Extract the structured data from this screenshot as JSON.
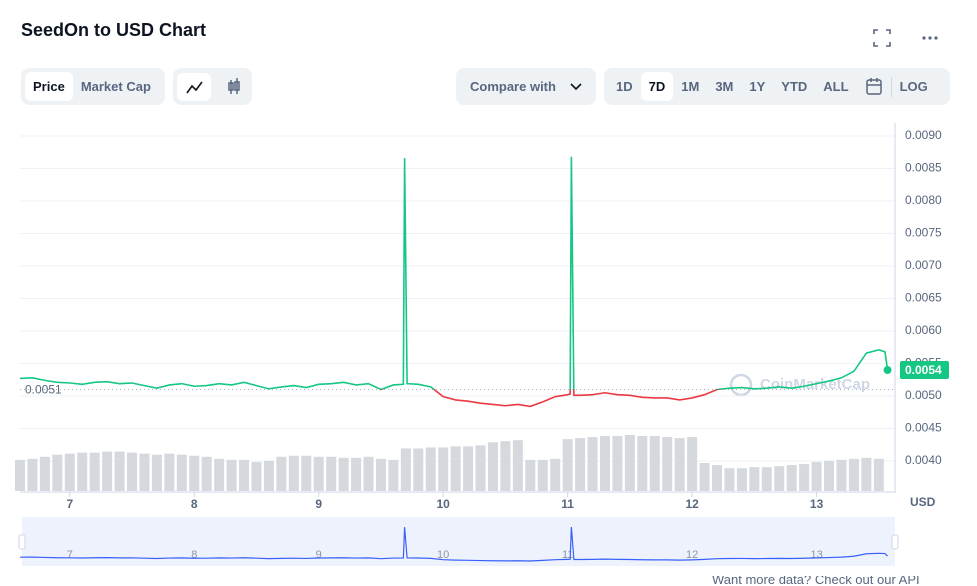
{
  "ui": {
    "tabs": [
      "Price",
      "Market Cap"
    ],
    "compare": "Compare with",
    "ranges": [
      "1D",
      "7D",
      "1M",
      "3M",
      "1Y",
      "YTD",
      "ALL"
    ],
    "log": "LOG",
    "footer": "Want more data? Check out our API"
  },
  "chart_data": {
    "type": "line",
    "title": "SeedOn to USD Chart",
    "x": [
      6.6,
      6.7,
      6.8,
      6.9,
      7.0,
      7.1,
      7.2,
      7.3,
      7.4,
      7.5,
      7.6,
      7.7,
      7.8,
      7.9,
      8.0,
      8.1,
      8.2,
      8.3,
      8.4,
      8.5,
      8.6,
      8.7,
      8.8,
      8.9,
      9.0,
      9.1,
      9.2,
      9.3,
      9.4,
      9.5,
      9.6,
      9.68,
      9.69,
      9.71,
      9.8,
      9.9,
      10.0,
      10.1,
      10.2,
      10.3,
      10.4,
      10.5,
      10.6,
      10.7,
      10.8,
      10.9,
      11.0,
      11.02,
      11.03,
      11.05,
      11.1,
      11.2,
      11.3,
      11.4,
      11.5,
      11.6,
      11.7,
      11.8,
      11.9,
      12.0,
      12.1,
      12.2,
      12.3,
      12.4,
      12.5,
      12.6,
      12.7,
      12.8,
      12.9,
      13.0,
      13.1,
      13.2,
      13.3,
      13.4,
      13.5,
      13.55,
      13.57
    ],
    "values": [
      0.00527,
      0.00528,
      0.00524,
      0.00521,
      0.0052,
      0.00518,
      0.00521,
      0.00522,
      0.00519,
      0.0052,
      0.00516,
      0.00512,
      0.00517,
      0.00519,
      0.00515,
      0.00516,
      0.00519,
      0.00517,
      0.00521,
      0.00516,
      0.00511,
      0.00514,
      0.00516,
      0.00513,
      0.00518,
      0.00519,
      0.00521,
      0.00517,
      0.00519,
      0.0051,
      0.00517,
      0.00518,
      0.00866,
      0.00519,
      0.00518,
      0.00514,
      0.00499,
      0.00494,
      0.00492,
      0.00489,
      0.00487,
      0.00485,
      0.00487,
      0.00484,
      0.00491,
      0.00499,
      0.00502,
      0.00503,
      0.00868,
      0.00501,
      0.00501,
      0.00502,
      0.00505,
      0.00502,
      0.00501,
      0.00498,
      0.00497,
      0.00497,
      0.00494,
      0.00497,
      0.00502,
      0.0051,
      0.00512,
      0.00513,
      0.00511,
      0.00512,
      0.00514,
      0.00512,
      0.00515,
      0.00519,
      0.00523,
      0.00528,
      0.00538,
      0.00566,
      0.00571,
      0.00568,
      0.0054
    ],
    "up_color": "#16c784",
    "down_color": "#ea3943",
    "baseline": 0.0051,
    "current": 0.0054,
    "volume": {
      "color": "#d5d8dd",
      "x": [
        6.6,
        6.7,
        6.8,
        6.9,
        7.0,
        7.1,
        7.2,
        7.3,
        7.4,
        7.5,
        7.6,
        7.7,
        7.8,
        7.9,
        8.0,
        8.1,
        8.2,
        8.3,
        8.4,
        8.5,
        8.6,
        8.7,
        8.8,
        8.9,
        9.0,
        9.1,
        9.2,
        9.3,
        9.4,
        9.5,
        9.6,
        9.7,
        9.8,
        9.9,
        10.0,
        10.1,
        10.2,
        10.3,
        10.4,
        10.5,
        10.6,
        10.7,
        10.8,
        10.9,
        11.0,
        11.1,
        11.2,
        11.3,
        11.4,
        11.5,
        11.6,
        11.7,
        11.8,
        11.9,
        12.0,
        12.1,
        12.2,
        12.3,
        12.4,
        12.5,
        12.6,
        12.7,
        12.8,
        12.9,
        13.0,
        13.1,
        13.2,
        13.3,
        13.4,
        13.5
      ],
      "values": [
        30,
        31,
        33,
        35,
        36,
        37,
        37,
        38,
        38,
        37,
        36,
        35,
        36,
        35,
        34,
        33,
        31,
        30,
        30,
        28,
        29,
        33,
        34,
        34,
        33,
        33,
        32,
        32,
        33,
        31,
        30,
        41,
        41,
        42,
        42,
        43,
        43,
        44,
        47,
        48,
        49,
        30,
        30,
        31,
        50,
        51,
        52,
        53,
        53,
        54,
        53,
        53,
        52,
        51,
        52,
        27,
        25,
        22,
        22,
        23,
        23,
        24,
        25,
        26,
        28,
        29,
        30,
        31,
        32,
        31
      ]
    },
    "xlim": [
      6.6,
      13.63
    ],
    "xticks": [
      7,
      8,
      9,
      10,
      11,
      12,
      13
    ],
    "ylim": [
      0.0035,
      0.0092
    ],
    "yticks": [
      {
        "value": 0.004,
        "label": "0.0040"
      },
      {
        "value": 0.0045,
        "label": "0.0045"
      },
      {
        "value": 0.005,
        "label": "0.0050"
      },
      {
        "value": 0.0055,
        "label": "0.0055"
      },
      {
        "value": 0.006,
        "label": "0.0060"
      },
      {
        "value": 0.0065,
        "label": "0.0065"
      },
      {
        "value": 0.007,
        "label": "0.0070"
      },
      {
        "value": 0.0075,
        "label": "0.0075"
      },
      {
        "value": 0.008,
        "label": "0.0080"
      },
      {
        "value": 0.0085,
        "label": "0.0085"
      },
      {
        "value": 0.009,
        "label": "0.0090"
      }
    ],
    "grid": true,
    "currency": "USD",
    "watermark": "CoinMarketCap",
    "navigator_color": "#3861fb"
  }
}
